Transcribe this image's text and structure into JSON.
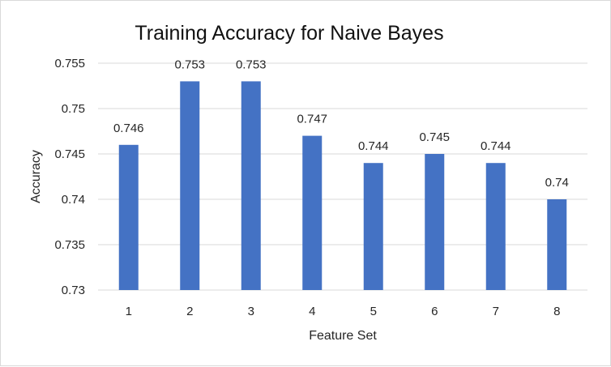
{
  "chart_data": {
    "type": "bar",
    "title": "Training Accuracy for Naive Bayes",
    "xlabel": "Feature Set",
    "ylabel": "Accuracy",
    "categories": [
      "1",
      "2",
      "3",
      "4",
      "5",
      "6",
      "7",
      "8"
    ],
    "values": [
      0.746,
      0.753,
      0.753,
      0.747,
      0.744,
      0.745,
      0.744,
      0.74
    ],
    "data_labels": [
      "0.746",
      "0.753",
      "0.753",
      "0.747",
      "0.744",
      "0.745",
      "0.744",
      "0.74"
    ],
    "ylim": [
      0.73,
      0.755
    ],
    "yticks": [
      0.73,
      0.735,
      0.74,
      0.745,
      0.75,
      0.755
    ],
    "ytick_labels": [
      "0.73",
      "0.735",
      "0.74",
      "0.745",
      "0.75",
      "0.755"
    ],
    "grid": true,
    "legend": "none",
    "bar_color": "#4472c4",
    "grid_color": "#d9d9d9"
  }
}
